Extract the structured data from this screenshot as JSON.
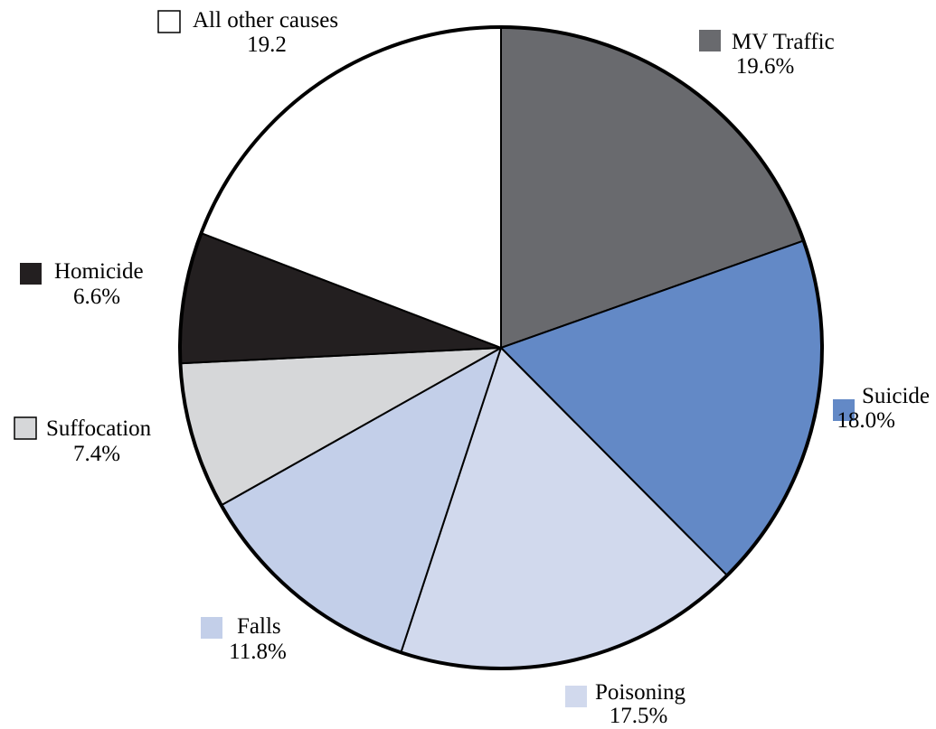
{
  "chart_data": {
    "type": "pie",
    "start_angle_deg": 0,
    "direction": "clockwise",
    "slices": [
      {
        "label": "MV Traffic",
        "value_text": "19.6%",
        "value": 19.6,
        "color": "#696a6e"
      },
      {
        "label": "Suicide",
        "value_text": "18.0%",
        "value": 18.0,
        "color": "#6389c6"
      },
      {
        "label": "Poisoning",
        "value_text": "17.5%",
        "value": 17.5,
        "color": "#d1d9ed"
      },
      {
        "label": "Falls",
        "value_text": "11.8%",
        "value": 11.8,
        "color": "#c3cfe9"
      },
      {
        "label": "Suffocation",
        "value_text": "7.4%",
        "value": 7.4,
        "color": "#d6d7d9"
      },
      {
        "label": "Homicide",
        "value_text": "6.6%",
        "value": 6.6,
        "color": "#231f20"
      },
      {
        "label": "All other causes",
        "value_text": "19.2",
        "value": 19.2,
        "color": "#ffffff"
      }
    ]
  }
}
